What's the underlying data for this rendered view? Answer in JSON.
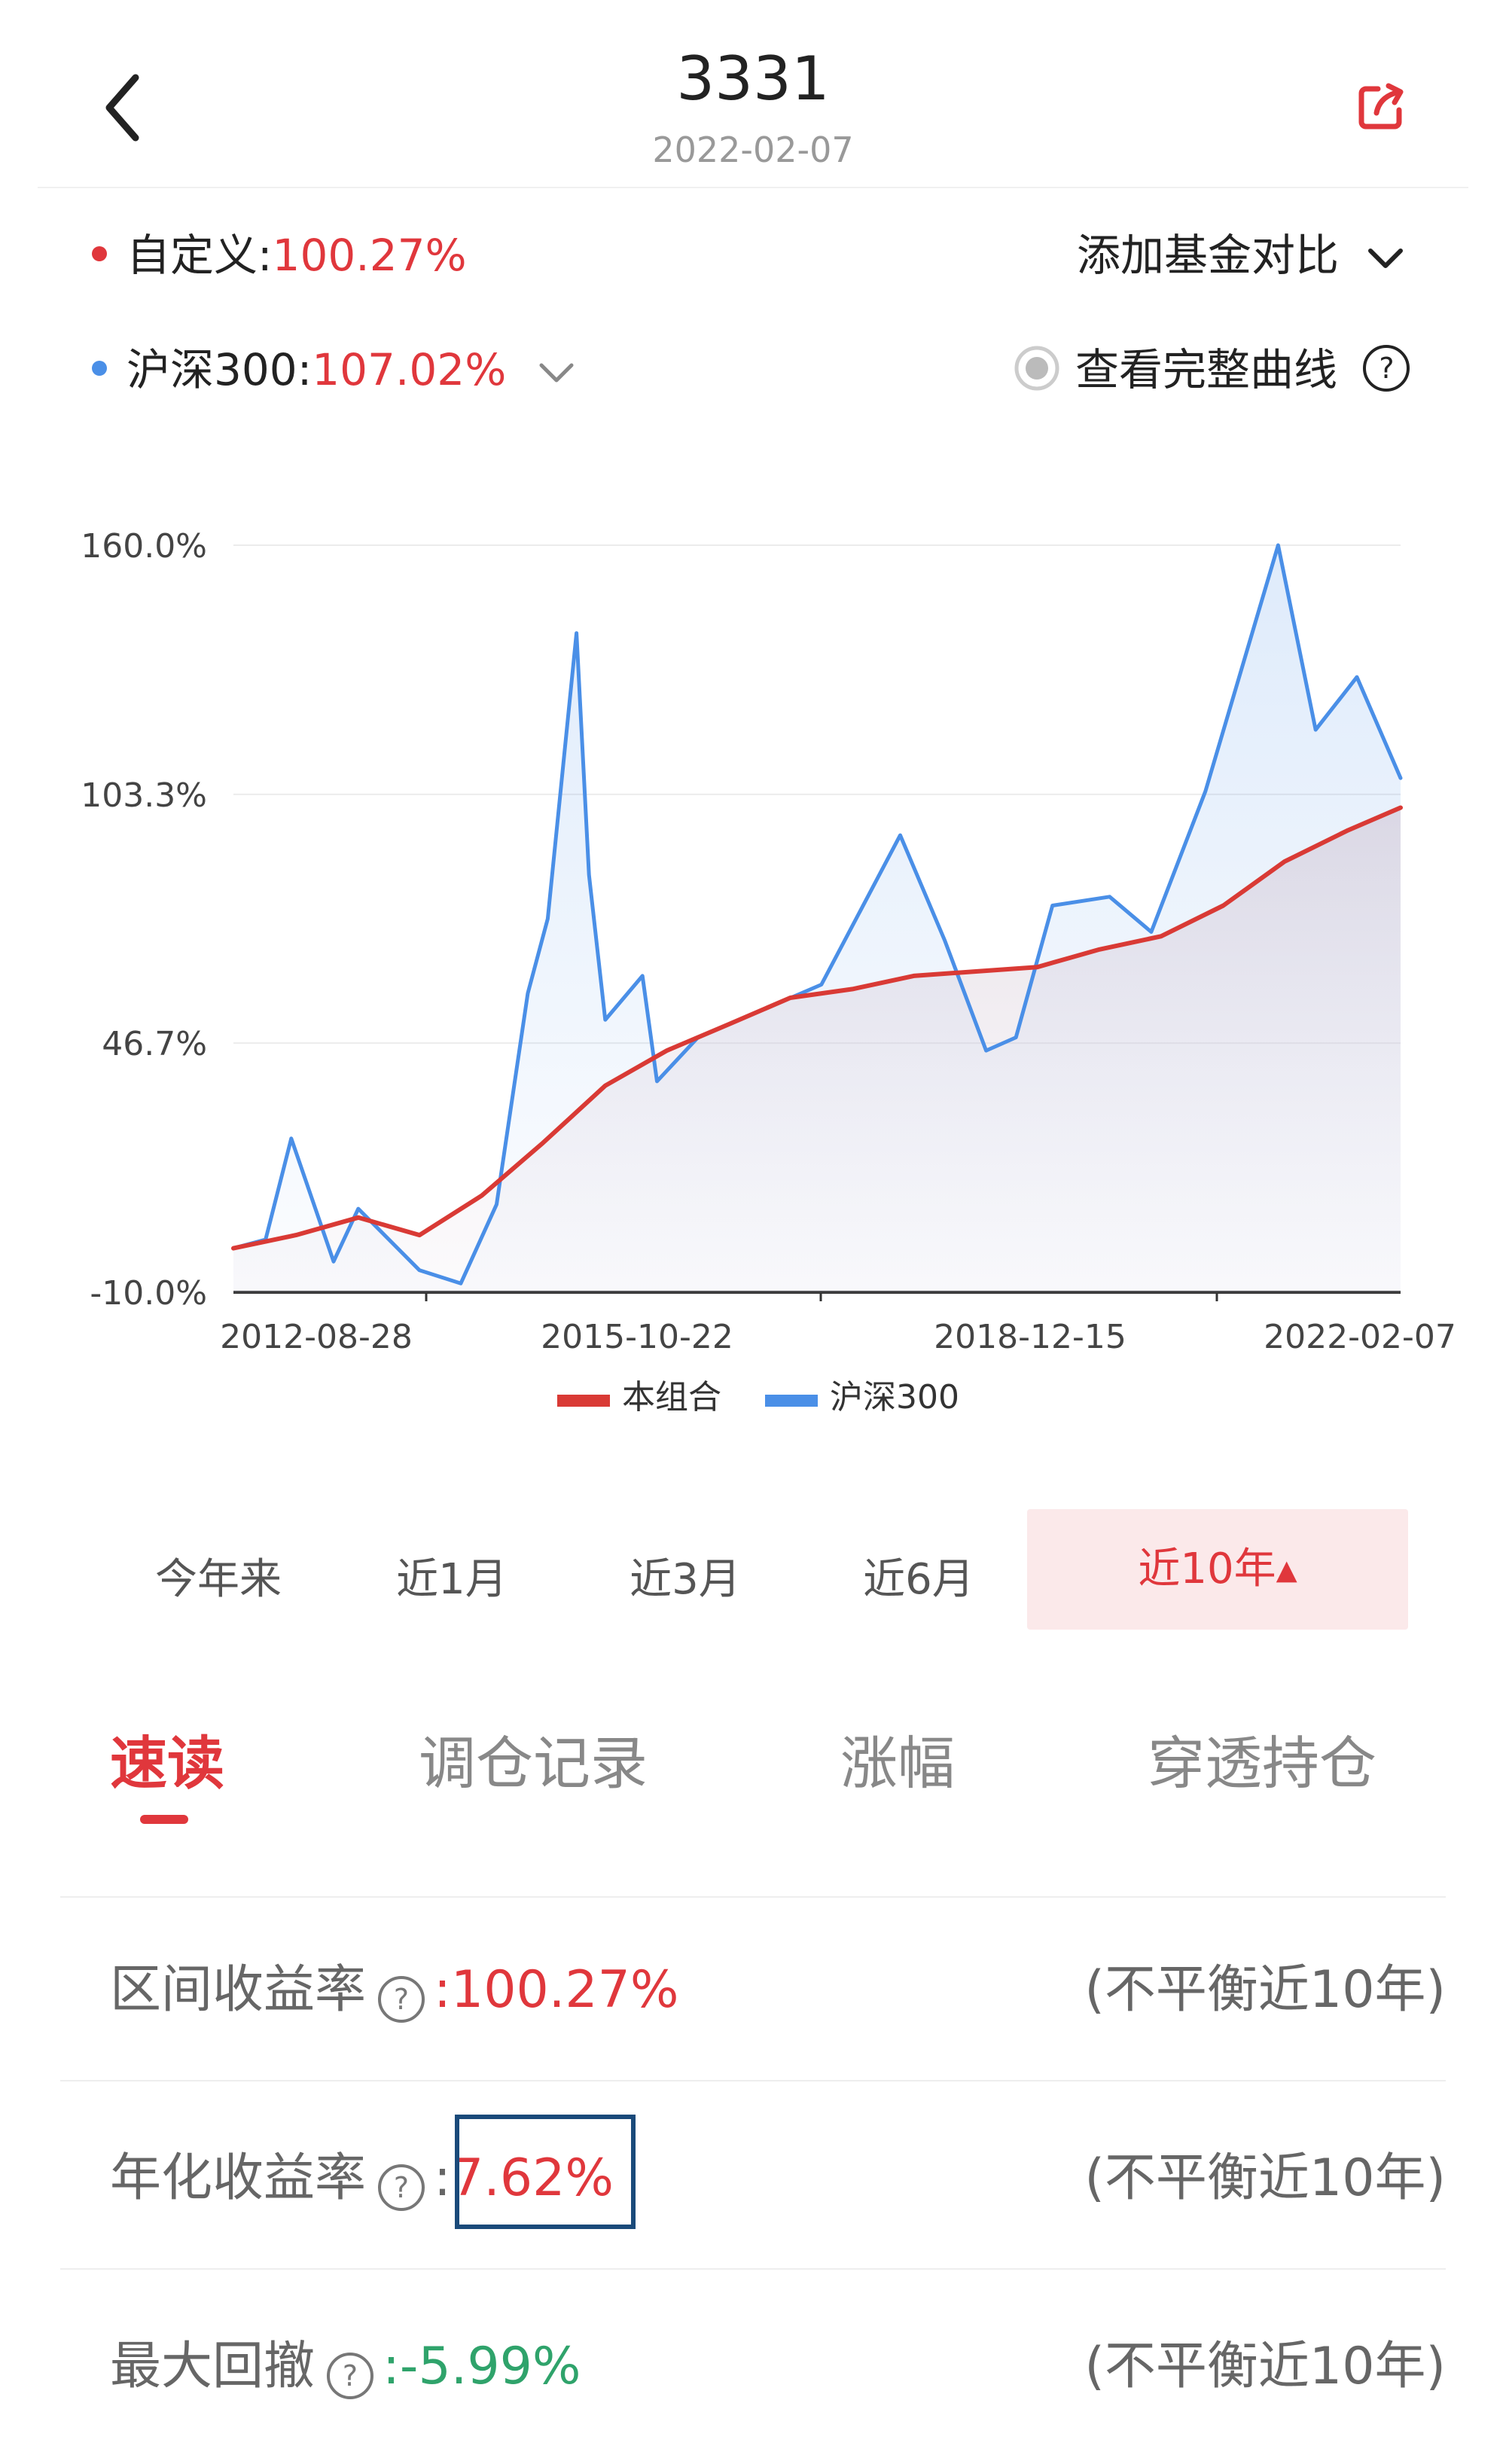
{
  "header": {
    "title": "3331",
    "date": "2022-02-07",
    "back_icon": "chevron-left-icon",
    "share_icon": "share-icon"
  },
  "legend": {
    "custom_label": "自定义:",
    "custom_value": "100.27%",
    "add_compare": "添加基金对比",
    "index_label": "沪深300:",
    "index_value": "107.02%",
    "view_full_curve": "查看完整曲线"
  },
  "colors": {
    "accent_red": "#e0373c",
    "series_blue": "#4a8fe7",
    "series_red": "#d93a35",
    "negative_green": "#2fa36b"
  },
  "chart_data": {
    "type": "line",
    "y_ticks": [
      "160.0%",
      "103.3%",
      "46.7%",
      "-10.0%"
    ],
    "ylim": [
      -10.0,
      160.0
    ],
    "x_ticks": [
      "2012-08-28",
      "2015-10-22",
      "2018-12-15",
      "2022-02-07"
    ],
    "grid": true,
    "legend_position": "bottom",
    "series": [
      {
        "name": "本组合",
        "color": "#d93a35",
        "x": [
          "2012-08-28",
          "2013-03-01",
          "2013-09-01",
          "2014-03-01",
          "2014-09-01",
          "2015-03-01",
          "2015-09-01",
          "2016-03-01",
          "2016-09-01",
          "2017-03-01",
          "2017-09-01",
          "2018-03-01",
          "2018-09-01",
          "2019-03-01",
          "2019-09-01",
          "2020-03-01",
          "2020-09-01",
          "2021-03-01",
          "2021-09-01",
          "2022-02-07"
        ],
        "values": [
          0,
          3,
          7,
          3,
          12,
          24,
          37,
          45,
          51,
          57,
          59,
          62,
          63,
          64,
          68,
          71,
          78,
          88,
          95,
          100.27
        ]
      },
      {
        "name": "沪深300",
        "color": "#4a8fe7",
        "x": [
          "2012-08-28",
          "2012-12-01",
          "2013-02-15",
          "2013-06-20",
          "2013-09-01",
          "2014-03-01",
          "2014-07-01",
          "2014-10-15",
          "2015-01-15",
          "2015-03-15",
          "2015-06-08",
          "2015-07-15",
          "2015-09-01",
          "2015-12-20",
          "2016-02-01",
          "2016-06-01",
          "2017-01-01",
          "2017-06-01",
          "2018-01-20",
          "2018-06-01",
          "2018-10-01",
          "2018-12-28",
          "2019-04-15",
          "2019-10-01",
          "2020-02-01",
          "2020-07-10",
          "2021-02-10",
          "2021-06-01",
          "2021-10-01",
          "2022-02-07"
        ],
        "values": [
          0,
          2,
          25,
          -3,
          9,
          -5,
          -8,
          10,
          58,
          75,
          140,
          85,
          52,
          62,
          38,
          48,
          55,
          60,
          94,
          70,
          45,
          48,
          78,
          80,
          72,
          104,
          160,
          118,
          130,
          107.02
        ]
      }
    ]
  },
  "range_tabs": [
    {
      "label": "今年来"
    },
    {
      "label": "近1月"
    },
    {
      "label": "近3月"
    },
    {
      "label": "近6月"
    },
    {
      "label": "近10年▴"
    }
  ],
  "tabs": [
    {
      "label": "速读"
    },
    {
      "label": "调仓记录"
    },
    {
      "label": "涨幅"
    },
    {
      "label": "穿透持仓"
    }
  ],
  "stats": [
    {
      "label": "区间收益率",
      "value": ":100.27%",
      "note": "(不平衡近10年)"
    },
    {
      "label": "年化收益率",
      "value": "7.62%",
      "prefix": ":",
      "note": "(不平衡近10年)"
    },
    {
      "label": "最大回撤",
      "value": ":-5.99%",
      "note": "(不平衡近10年)"
    }
  ],
  "help_icon_glyph": "?"
}
